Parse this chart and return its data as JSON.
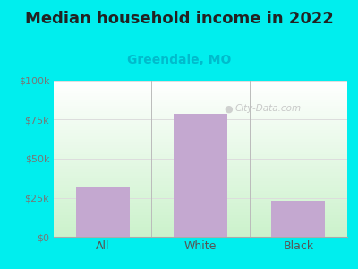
{
  "title": "Median household income in 2022",
  "subtitle": "Greendale, MO",
  "categories": [
    "All",
    "White",
    "Black"
  ],
  "values": [
    32000,
    79000,
    23000
  ],
  "bar_color": "#C4A8D0",
  "title_fontsize": 13,
  "title_fontweight": "bold",
  "title_color": "#222222",
  "subtitle_fontsize": 10,
  "subtitle_color": "#00BBCC",
  "subtitle_fontweight": "bold",
  "tick_color": "#777777",
  "label_color": "#555555",
  "bg_outer": "#00EEEE",
  "ylim": [
    0,
    100000
  ],
  "yticks": [
    0,
    25000,
    50000,
    75000,
    100000
  ],
  "ytick_labels": [
    "$0",
    "$25k",
    "$50k",
    "$75k",
    "$100k"
  ],
  "watermark": "City-Data.com",
  "divider_color": "#bbbbbb",
  "grid_color": "#dddddd"
}
